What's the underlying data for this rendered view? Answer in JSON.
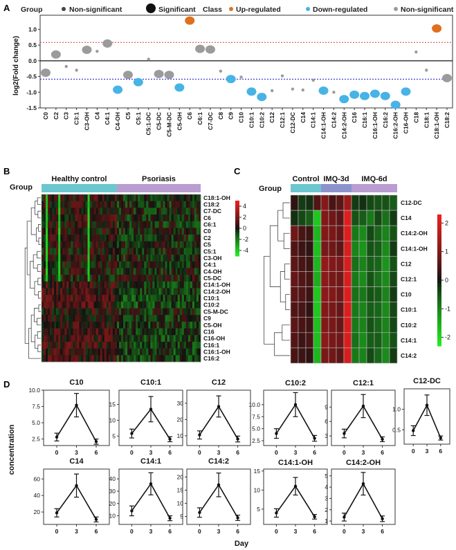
{
  "panel_labels": {
    "a": "A",
    "b": "B",
    "c": "C",
    "d": "D"
  },
  "colors": {
    "up": "#e0701e",
    "down": "#47b3e6",
    "nonsig": "#9b9b9b",
    "heat_high": "#ee1f1f",
    "heat_mid": "#111111",
    "heat_low": "#22ee22",
    "group_control": "#6cc6ce",
    "group_psoriasis": "#b99dd1",
    "group_imq3": "#8c93cc",
    "group_imq6": "#b99dd1"
  },
  "chart_data": [
    {
      "id": "A",
      "type": "scatter",
      "legend": {
        "group_title": "Group",
        "group_nonsig": "Non-significant",
        "group_sig": "Significant",
        "class_title": "Class",
        "class_up": "Up-regulated",
        "class_down": "Down-regulated",
        "class_nonsig": "Non-significant"
      },
      "ylabel": "log2(Fold change)",
      "ylim": [
        -1.5,
        1.45
      ],
      "yticks": [
        -1.5,
        -1.0,
        -0.5,
        0.0,
        0.5,
        1.0
      ],
      "ytick_labels": [
        "-1.5",
        "-1.0",
        "-0.5",
        "0.0",
        "0.5",
        "1.0"
      ],
      "thresholds": [
        0.585,
        -0.585
      ],
      "points": [
        {
          "name": "C0",
          "fc": -0.38,
          "cls": "nonsig",
          "sig": true
        },
        {
          "name": "C2",
          "fc": 0.2,
          "cls": "nonsig",
          "sig": true
        },
        {
          "name": "C3",
          "fc": -0.18,
          "cls": "nonsig",
          "sig": false
        },
        {
          "name": "C3:1",
          "fc": -0.3,
          "cls": "nonsig",
          "sig": false
        },
        {
          "name": "C3-OH",
          "fc": 0.35,
          "cls": "nonsig",
          "sig": true
        },
        {
          "name": "C4",
          "fc": 0.3,
          "cls": "nonsig",
          "sig": false
        },
        {
          "name": "C4:1",
          "fc": 0.55,
          "cls": "nonsig",
          "sig": true
        },
        {
          "name": "C4-OH",
          "fc": -0.92,
          "cls": "down",
          "sig": true
        },
        {
          "name": "C5",
          "fc": -0.45,
          "cls": "nonsig",
          "sig": true
        },
        {
          "name": "C5:1",
          "fc": -0.68,
          "cls": "down",
          "sig": true
        },
        {
          "name": "C5:1-DC",
          "fc": 0.05,
          "cls": "nonsig",
          "sig": false
        },
        {
          "name": "C5-DC",
          "fc": -0.42,
          "cls": "nonsig",
          "sig": true
        },
        {
          "name": "C5-M-DC",
          "fc": -0.45,
          "cls": "nonsig",
          "sig": true
        },
        {
          "name": "C5-OH",
          "fc": -0.85,
          "cls": "down",
          "sig": true
        },
        {
          "name": "C6",
          "fc": 1.28,
          "cls": "up",
          "sig": true
        },
        {
          "name": "C6:1",
          "fc": 0.38,
          "cls": "nonsig",
          "sig": true
        },
        {
          "name": "C7-DC",
          "fc": 0.36,
          "cls": "nonsig",
          "sig": true
        },
        {
          "name": "C8",
          "fc": -0.33,
          "cls": "nonsig",
          "sig": false
        },
        {
          "name": "C9",
          "fc": -0.58,
          "cls": "down",
          "sig": true
        },
        {
          "name": "C10",
          "fc": -0.52,
          "cls": "nonsig",
          "sig": false
        },
        {
          "name": "C10:1",
          "fc": -0.98,
          "cls": "down",
          "sig": true
        },
        {
          "name": "C10:2",
          "fc": -1.15,
          "cls": "down",
          "sig": true
        },
        {
          "name": "C12",
          "fc": -0.95,
          "cls": "nonsig",
          "sig": false
        },
        {
          "name": "C12:1",
          "fc": -0.48,
          "cls": "nonsig",
          "sig": false
        },
        {
          "name": "C12-DC",
          "fc": -0.9,
          "cls": "nonsig",
          "sig": false
        },
        {
          "name": "C14",
          "fc": -0.93,
          "cls": "nonsig",
          "sig": false
        },
        {
          "name": "C14:1",
          "fc": -0.62,
          "cls": "nonsig",
          "sig": false
        },
        {
          "name": "C14:1-OH",
          "fc": -0.95,
          "cls": "down",
          "sig": true
        },
        {
          "name": "C14:2",
          "fc": -1.0,
          "cls": "nonsig",
          "sig": false
        },
        {
          "name": "C14:2-OH",
          "fc": -1.22,
          "cls": "down",
          "sig": true
        },
        {
          "name": "C16",
          "fc": -1.08,
          "cls": "down",
          "sig": true
        },
        {
          "name": "C16:1",
          "fc": -1.12,
          "cls": "down",
          "sig": true
        },
        {
          "name": "C16:1-OH",
          "fc": -1.05,
          "cls": "down",
          "sig": true
        },
        {
          "name": "C16:2",
          "fc": -1.12,
          "cls": "down",
          "sig": true
        },
        {
          "name": "C16:2-OH",
          "fc": -1.4,
          "cls": "down",
          "sig": true
        },
        {
          "name": "C16-OH",
          "fc": -0.98,
          "cls": "down",
          "sig": true
        },
        {
          "name": "C18",
          "fc": 0.28,
          "cls": "nonsig",
          "sig": false
        },
        {
          "name": "C18:1",
          "fc": -0.3,
          "cls": "nonsig",
          "sig": false
        },
        {
          "name": "C18:1-OH",
          "fc": 1.03,
          "cls": "up",
          "sig": true
        },
        {
          "name": "C18:2",
          "fc": -0.55,
          "cls": "nonsig",
          "sig": true
        }
      ]
    },
    {
      "id": "B",
      "type": "heatmap",
      "group_label": "Group",
      "groups": [
        {
          "name": "Healthy control",
          "n": 36
        },
        {
          "name": "Psoriasis",
          "n": 40
        }
      ],
      "rows": [
        "C18:1-OH",
        "C18:2",
        "C7-DC",
        "C6",
        "C6:1",
        "C0",
        "C2",
        "C5",
        "C5:1",
        "C3-OH",
        "C4:1",
        "C4-OH",
        "C5-DC",
        "C14:1-OH",
        "C14:2-OH",
        "C10:1",
        "C10:2",
        "C5-M-DC",
        "C9",
        "C5-OH",
        "C16",
        "C16-OH",
        "C16:1",
        "C16:1-OH",
        "C16:2"
      ],
      "row_trend": [
        0.3,
        0.3,
        0.2,
        0.35,
        0.3,
        0.25,
        0.3,
        0.1,
        0.1,
        0.1,
        0.15,
        0.15,
        -0.1,
        0.45,
        0.45,
        0.6,
        0.6,
        0.2,
        0.35,
        0.4,
        0.5,
        0.5,
        0.5,
        0.5,
        0.45
      ],
      "legend_ticks": [
        4,
        2,
        0,
        -2,
        -4
      ],
      "legend_range": [
        -5,
        5
      ]
    },
    {
      "id": "C",
      "type": "heatmap",
      "group_label": "Group",
      "groups": [
        {
          "name": "Control",
          "n": 4
        },
        {
          "name": "IMQ-3d",
          "n": 4
        },
        {
          "name": "IMQ-6d",
          "n": 6
        }
      ],
      "rows": [
        "C12-DC",
        "C14",
        "C14:2-OH",
        "C14:1-OH",
        "C12",
        "C12:1",
        "C10",
        "C10:1",
        "C10:2",
        "C14:1",
        "C14:2"
      ],
      "values": [
        [
          0.2,
          -0.3,
          -0.2,
          0.5,
          1.0,
          0.4,
          0.6,
          1.3,
          -0.3,
          -0.2,
          -0.4,
          -0.5,
          -0.5,
          -0.6
        ],
        [
          -0.2,
          -0.4,
          -0.6,
          -1.8,
          1.0,
          0.8,
          0.6,
          2.1,
          -0.5,
          -0.6,
          -0.9,
          -0.4,
          -0.8,
          -0.3
        ],
        [
          0.8,
          0.4,
          0.3,
          -1.6,
          1.0,
          0.9,
          0.7,
          2.1,
          -0.9,
          -1.1,
          -0.4,
          -0.7,
          -1.0,
          -0.5
        ],
        [
          0.5,
          0.3,
          0.2,
          -1.7,
          0.9,
          0.8,
          0.6,
          2.0,
          -1.0,
          -1.2,
          -0.5,
          -0.6,
          -1.1,
          -0.3
        ],
        [
          0.6,
          0.4,
          0.3,
          -1.6,
          1.2,
          1.0,
          0.9,
          2.0,
          -0.8,
          -1.0,
          -0.6,
          -0.7,
          -1.2,
          -0.5
        ],
        [
          0.7,
          0.5,
          0.4,
          -1.5,
          1.1,
          0.9,
          0.8,
          2.0,
          -0.9,
          -1.1,
          -0.5,
          -0.8,
          -1.1,
          -0.4
        ],
        [
          0.6,
          0.5,
          0.3,
          -1.8,
          1.1,
          1.0,
          0.8,
          2.1,
          -0.8,
          -0.9,
          -0.5,
          -0.6,
          -1.0,
          -0.3
        ],
        [
          0.5,
          0.4,
          0.2,
          -1.8,
          1.0,
          0.9,
          0.7,
          2.1,
          -0.9,
          -1.0,
          -0.6,
          -0.7,
          -1.1,
          -0.4
        ],
        [
          0.6,
          0.4,
          0.3,
          -1.7,
          1.0,
          0.9,
          0.7,
          2.0,
          -0.9,
          -1.0,
          -0.5,
          -0.7,
          -1.0,
          -0.4
        ],
        [
          0.5,
          0.3,
          0.4,
          -1.7,
          1.1,
          0.9,
          0.8,
          2.0,
          -0.8,
          -1.1,
          -0.6,
          -0.6,
          -1.0,
          -0.5
        ],
        [
          0.4,
          0.3,
          0.2,
          -1.6,
          0.9,
          0.8,
          0.6,
          2.0,
          -0.9,
          -1.0,
          -0.4,
          -0.7,
          -1.1,
          -0.3
        ]
      ],
      "legend_ticks": [
        2,
        1,
        0,
        -1,
        -2
      ],
      "legend_range": [
        -2.3,
        2.3
      ]
    },
    {
      "id": "D",
      "type": "line",
      "ylabel": "concentration",
      "xlabel": "Day",
      "x": [
        0,
        3,
        6
      ],
      "panels": [
        {
          "title": "C10",
          "mean": [
            2.8,
            7.7,
            2.1
          ],
          "err": [
            0.6,
            1.8,
            0.4
          ],
          "ylim": [
            1.5,
            10
          ],
          "yticks": [
            2.5,
            5.0,
            7.5,
            10.0
          ],
          "ytick_labels": [
            "2.5",
            "5.0",
            "7.5",
            "10.0"
          ]
        },
        {
          "title": "C10:1",
          "mean": [
            5.8,
            13.5,
            4.0
          ],
          "err": [
            1.4,
            4.0,
            0.8
          ],
          "ylim": [
            2.0,
            19.5
          ],
          "yticks": [
            5,
            10,
            15
          ],
          "ytick_labels": [
            "5",
            "10",
            "15"
          ]
        },
        {
          "title": "C12",
          "mean": [
            10.5,
            28.0,
            8.0
          ],
          "err": [
            2.5,
            6.5,
            1.8
          ],
          "ylim": [
            4.0,
            38.0
          ],
          "yticks": [
            10,
            20,
            30
          ],
          "ytick_labels": [
            "10",
            "20",
            "30"
          ]
        },
        {
          "title": "C10:2",
          "mean": [
            4.0,
            10.0,
            3.0
          ],
          "err": [
            1.0,
            2.5,
            0.6
          ],
          "ylim": [
            1.5,
            13.0
          ],
          "yticks": [
            2.5,
            5.0,
            7.5,
            10.0
          ],
          "ytick_labels": [
            "2.5",
            "5.0",
            "7.5",
            "10.0"
          ]
        },
        {
          "title": "C12:1",
          "mean": [
            3.5,
            9.2,
            2.3
          ],
          "err": [
            0.9,
            2.4,
            0.5
          ],
          "ylim": [
            1.0,
            12.5
          ],
          "yticks": [
            3,
            6,
            9
          ],
          "ytick_labels": [
            "3",
            "6",
            "9"
          ]
        },
        {
          "title": "C12-DC",
          "mean": [
            0.48,
            1.1,
            0.3
          ],
          "err": [
            0.12,
            0.25,
            0.05
          ],
          "ylim": [
            0.15,
            1.5
          ],
          "yticks": [
            0.5,
            1.0
          ],
          "ytick_labels": [
            "0.5",
            "1.0"
          ]
        },
        {
          "title": "C14",
          "mean": [
            19.0,
            52.0,
            11.0
          ],
          "err": [
            5.0,
            14.0,
            3.0
          ],
          "ylim": [
            5.0,
            72.0
          ],
          "yticks": [
            20,
            40,
            60
          ],
          "ytick_labels": [
            "20",
            "40",
            "60"
          ]
        },
        {
          "title": "C14:1",
          "mean": [
            14.0,
            36.0,
            8.0
          ],
          "err": [
            4.0,
            9.0,
            2.0
          ],
          "ylim": [
            3.0,
            48.0
          ],
          "yticks": [
            10,
            20,
            30,
            40
          ],
          "ytick_labels": [
            "10",
            "20",
            "30",
            "40"
          ]
        },
        {
          "title": "C14:2",
          "mean": [
            6.5,
            17.0,
            4.5
          ],
          "err": [
            1.8,
            4.5,
            1.0
          ],
          "ylim": [
            2.0,
            23.0
          ],
          "yticks": [
            5,
            10,
            15,
            20
          ],
          "ytick_labels": [
            "5",
            "10",
            "15",
            "20"
          ]
        },
        {
          "title": "C14:1-OH",
          "mean": [
            4.0,
            11.0,
            3.0
          ],
          "err": [
            1.1,
            2.3,
            0.6
          ],
          "ylim": [
            1.0,
            15.5
          ],
          "yticks": [
            5,
            10,
            15
          ],
          "ytick_labels": [
            "5",
            "10",
            "15"
          ]
        },
        {
          "title": "C14:2-OH",
          "mean": [
            1.35,
            4.3,
            1.2
          ],
          "err": [
            0.35,
            1.0,
            0.25
          ],
          "ylim": [
            0.7,
            5.6
          ],
          "yticks": [
            1,
            2,
            3,
            4,
            5
          ],
          "ytick_labels": [
            "1",
            "2",
            "3",
            "4",
            "5"
          ]
        }
      ]
    }
  ]
}
